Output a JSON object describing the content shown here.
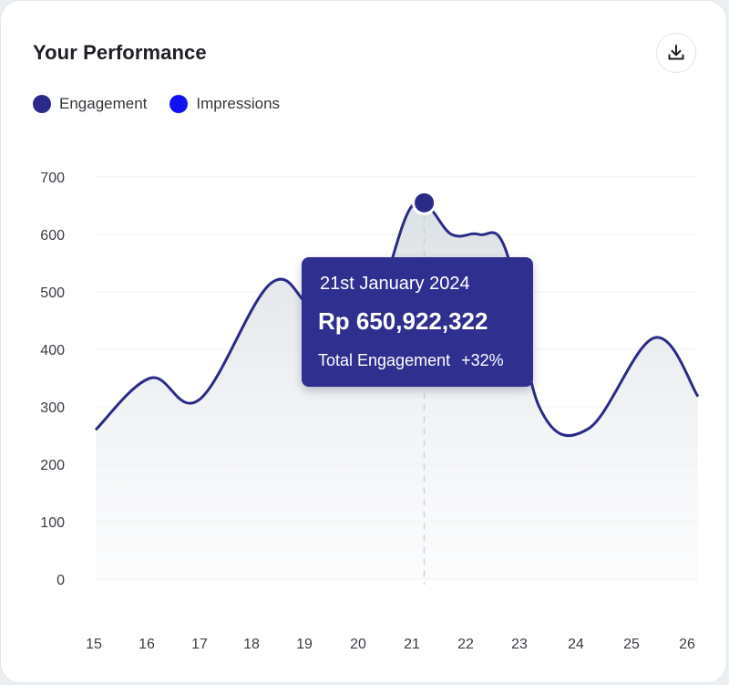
{
  "title": "Your Performance",
  "download": {
    "icon": "download-icon"
  },
  "legend": [
    {
      "label": "Engagement",
      "color": "#2a2b86"
    },
    {
      "label": "Impressions",
      "color": "#1212f0"
    }
  ],
  "chart_data": {
    "type": "area",
    "title": "Your Performance",
    "x": [
      15,
      16,
      17,
      18,
      19,
      20,
      21,
      22,
      23,
      24,
      25,
      26
    ],
    "y_ticks": [
      0,
      100,
      200,
      300,
      400,
      500,
      600,
      700
    ],
    "ylim": [
      0,
      700
    ],
    "grid": true,
    "legend_position": "top-left",
    "series": [
      {
        "name": "Engagement",
        "color": "#2a2b86",
        "points": [
          [
            15,
            260
          ],
          [
            16,
            350
          ],
          [
            16.9,
            313
          ],
          [
            18.2,
            515
          ],
          [
            19,
            470
          ],
          [
            20,
            460
          ],
          [
            20.8,
            652
          ],
          [
            21.5,
            600
          ],
          [
            22,
            600
          ],
          [
            22.5,
            570
          ],
          [
            23.1,
            300
          ],
          [
            24,
            262
          ],
          [
            25.2,
            420
          ],
          [
            26,
            318
          ]
        ]
      }
    ],
    "highlight": {
      "x": 21,
      "y": 655
    }
  },
  "tooltip": {
    "date": "21st January 2024",
    "value": "Rp 650,922,322",
    "label": "Total Engagement",
    "change": "+32%"
  }
}
